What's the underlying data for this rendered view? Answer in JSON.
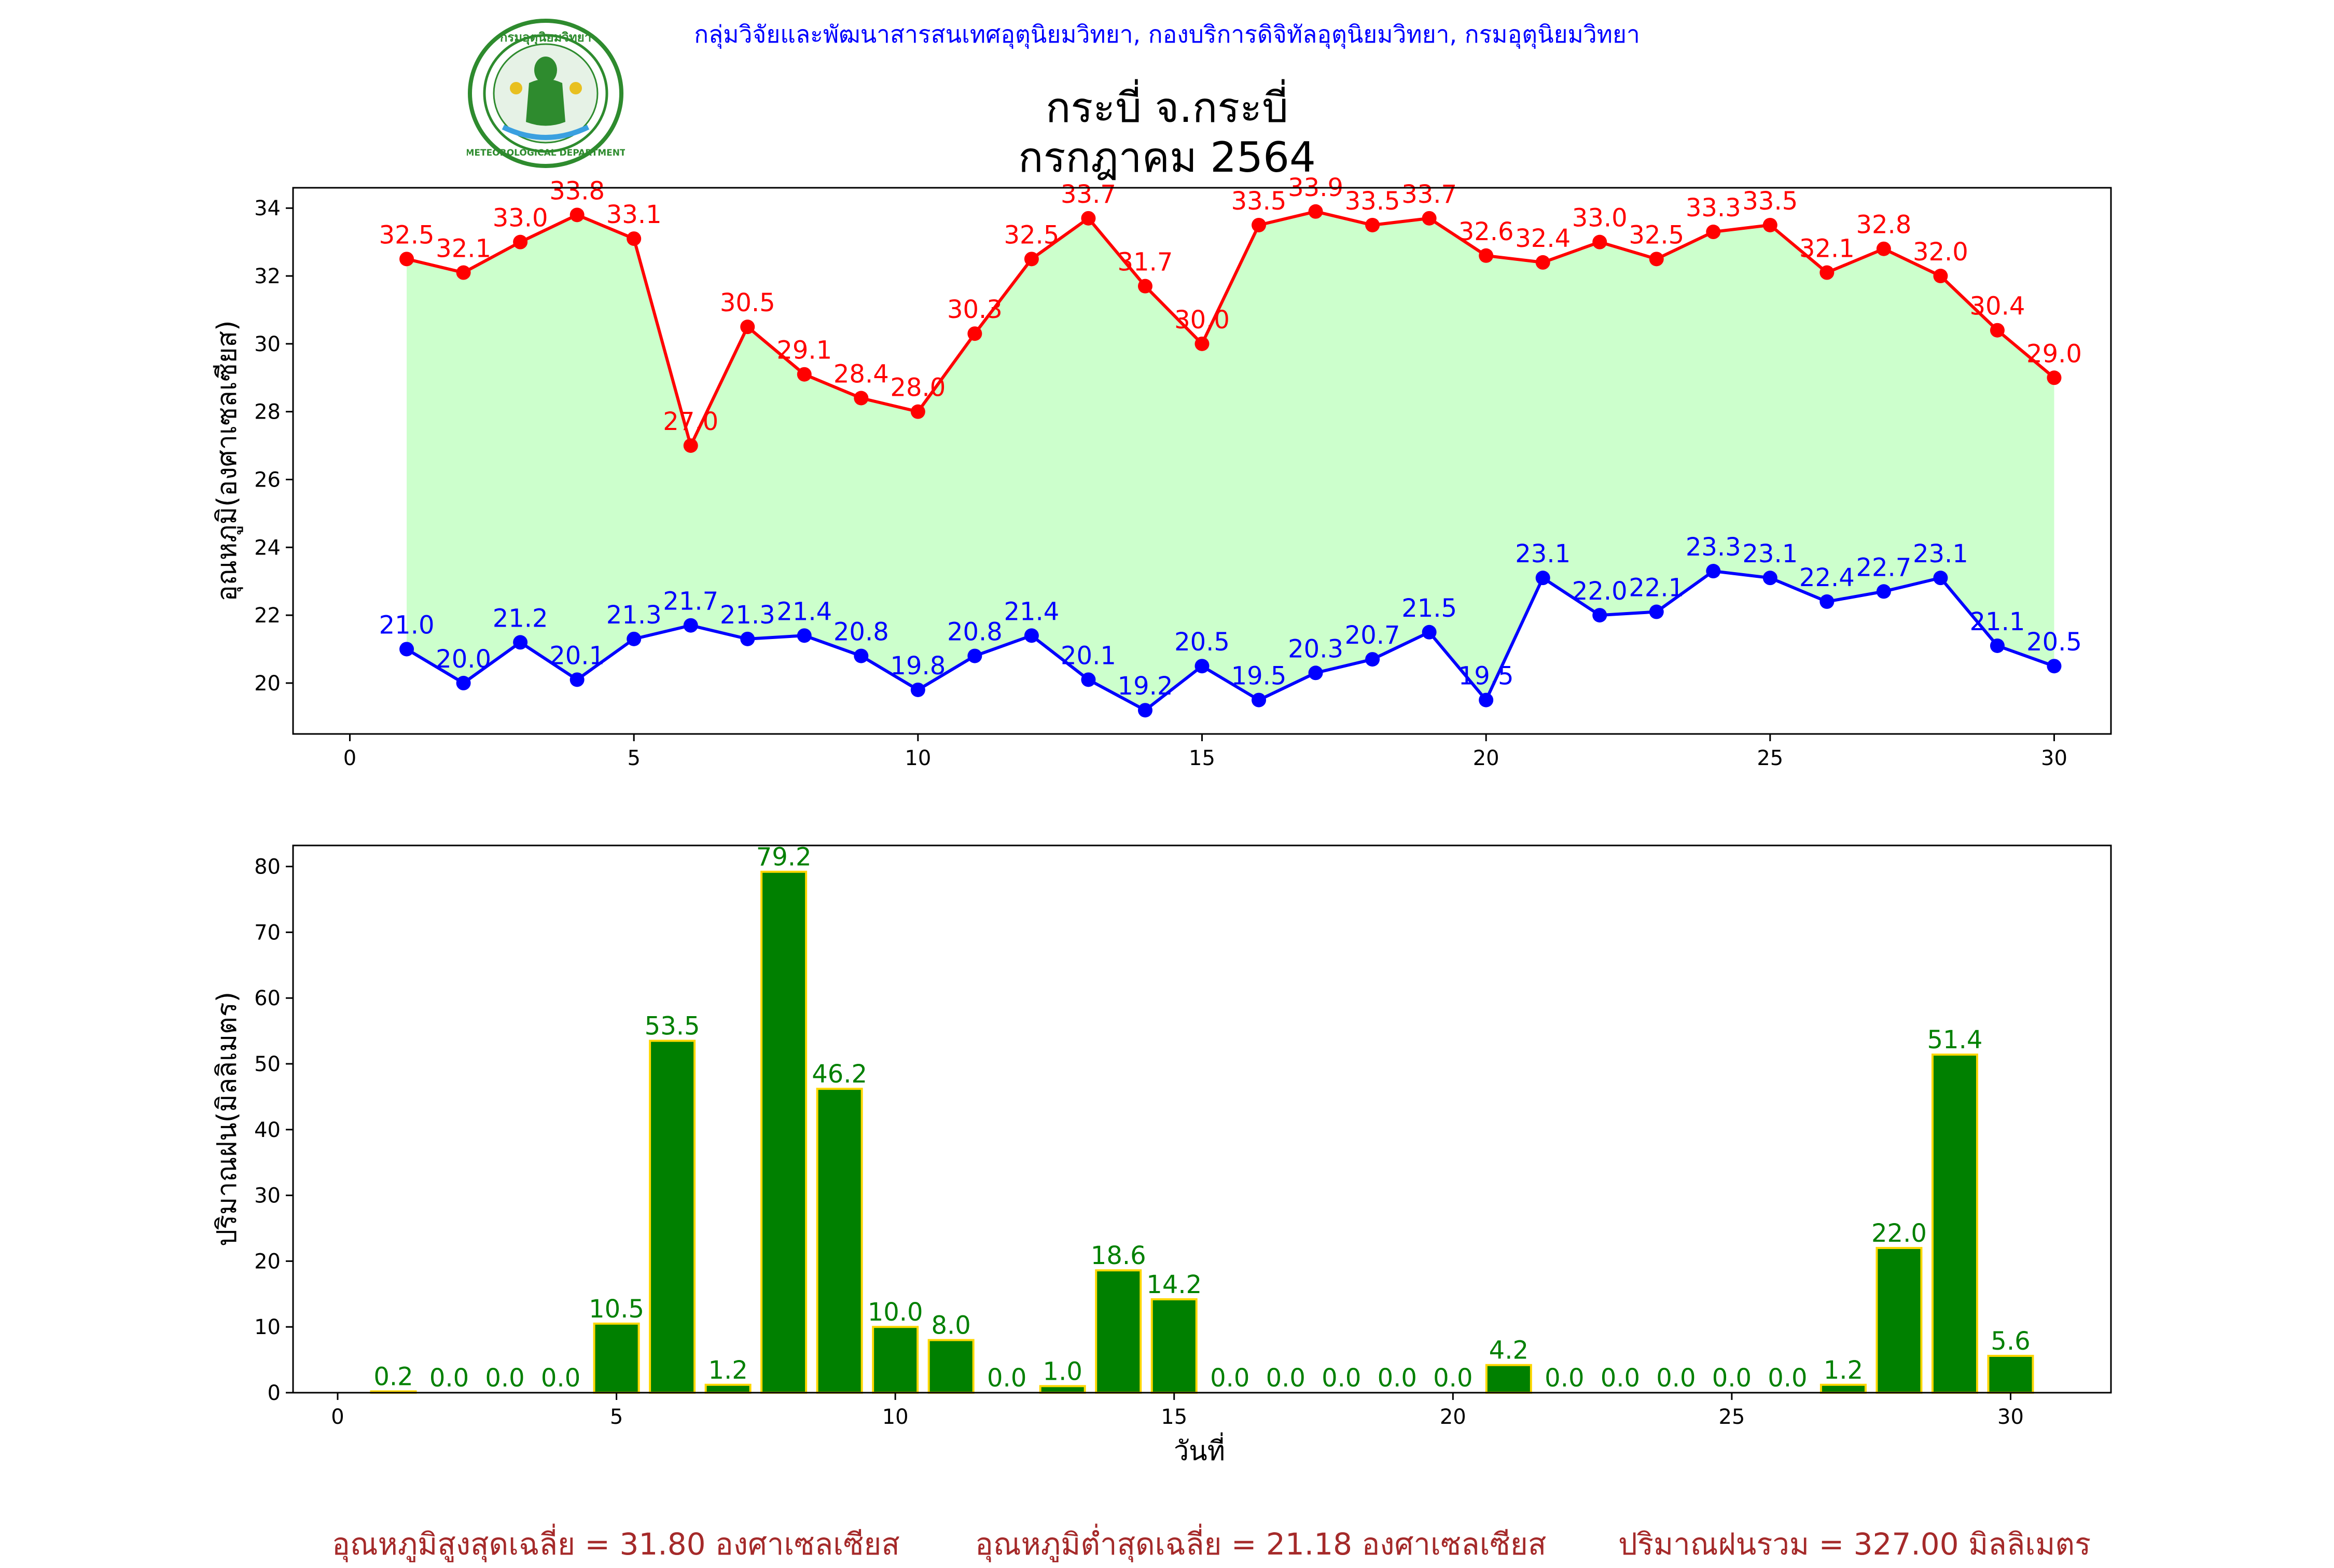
{
  "header": {
    "credit": "กลุ่มวิจัยและพัฒนาสารสนเทศอุตุนิยมวิทยา, กองบริการดิจิทัลอุตุนิยมวิทยา, กรมอุตุนิยมวิทยา",
    "logo_text_top": "กรมอุตุนิยมวิทยา",
    "logo_text_bottom": "METEOROLOGICAL DEPARTMENT"
  },
  "chart_title": [
    "กระบี่ จ.กระบี่",
    "กรกฎาคม 2564"
  ],
  "colors": {
    "max_line": "#ff0000",
    "min_line": "#0000ff",
    "band_fill": "#ccffcc",
    "bar_fill": "#008000",
    "bar_edge": "#ffd700",
    "bar_label": "#008000",
    "footer_text": "#a52a2a",
    "credit_text": "#0000ff"
  },
  "chart_data": [
    {
      "type": "line",
      "x": [
        1,
        2,
        3,
        4,
        5,
        6,
        7,
        8,
        9,
        10,
        11,
        12,
        13,
        14,
        15,
        16,
        17,
        18,
        19,
        20,
        21,
        22,
        23,
        24,
        25,
        26,
        27,
        28,
        29,
        30
      ],
      "series": [
        {
          "values": [
            32.5,
            32.1,
            33.0,
            33.8,
            33.1,
            27.0,
            30.5,
            29.1,
            28.4,
            28.0,
            30.3,
            32.5,
            33.7,
            31.7,
            30.0,
            33.5,
            33.9,
            33.5,
            33.7,
            32.6,
            32.4,
            33.0,
            32.5,
            33.3,
            33.5,
            32.1,
            32.8,
            32.0,
            30.4,
            29.0
          ],
          "color": "#ff0000"
        },
        {
          "values": [
            21.0,
            20.0,
            21.2,
            20.1,
            21.3,
            21.7,
            21.3,
            21.4,
            20.8,
            19.8,
            20.8,
            21.4,
            20.1,
            19.2,
            20.5,
            19.5,
            20.3,
            20.7,
            21.5,
            19.5,
            23.1,
            22.0,
            22.1,
            23.3,
            23.1,
            22.4,
            22.7,
            23.1,
            21.1,
            20.5
          ],
          "color": "#0000ff"
        }
      ],
      "fill_between": true,
      "title": "",
      "xlabel": "",
      "ylabel": "อุณหภูมิ(องศาเซลเซียส)",
      "xlim": [
        -1,
        31
      ],
      "ylim": [
        18.5,
        34.6
      ],
      "xticks": [
        0,
        5,
        10,
        15,
        20,
        25,
        30
      ],
      "yticks": [
        20,
        22,
        24,
        26,
        28,
        30,
        32,
        34
      ],
      "grid": false
    },
    {
      "type": "bar",
      "categories": [
        1,
        2,
        3,
        4,
        5,
        6,
        7,
        8,
        9,
        10,
        11,
        12,
        13,
        14,
        15,
        16,
        17,
        18,
        19,
        20,
        21,
        22,
        23,
        24,
        25,
        26,
        27,
        28,
        29,
        30
      ],
      "values": [
        0.2,
        0.0,
        0.0,
        0.0,
        10.5,
        53.5,
        1.2,
        79.2,
        46.2,
        10.0,
        8.0,
        0.0,
        1.0,
        18.6,
        14.2,
        0.0,
        0.0,
        0.0,
        0.0,
        0.0,
        4.2,
        0.0,
        0.0,
        0.0,
        0.0,
        0.0,
        1.2,
        22.0,
        51.4,
        5.6
      ],
      "title": "",
      "xlabel": "วันที่",
      "ylabel": "ปริมาณฝน(มิลลิเมตร)",
      "xlim": [
        -0.8,
        31.8
      ],
      "ylim": [
        0,
        83.2
      ],
      "xticks": [
        0,
        5,
        10,
        15,
        20,
        25,
        30
      ],
      "yticks": [
        0,
        10,
        20,
        30,
        40,
        50,
        60,
        70,
        80
      ],
      "grid": false
    }
  ],
  "footer": {
    "avg_max": "อุณหภูมิสูงสุดเฉลี่ย = 31.80 องศาเซลเซียส",
    "avg_min": "อุณหภูมิต่ำสุดเฉลี่ย = 21.18 องศาเซลเซียส",
    "total_rain": "ปริมาณฝนรวม = 327.00 มิลลิเมตร"
  }
}
